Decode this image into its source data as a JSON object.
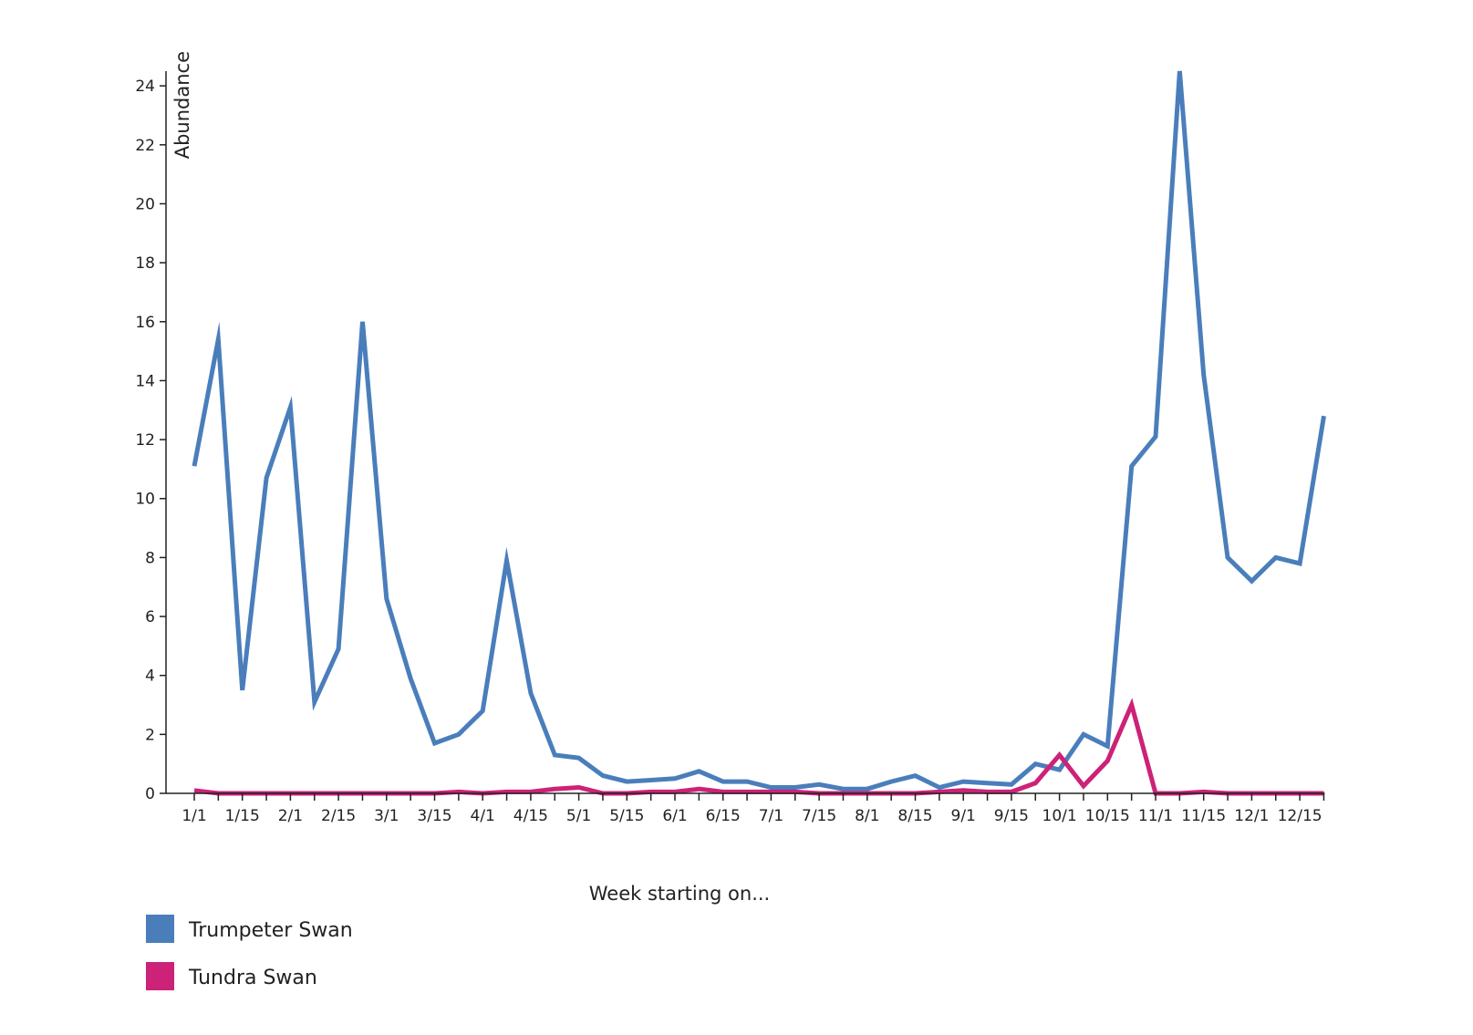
{
  "chart_data": {
    "type": "line",
    "xlabel": "Week starting on...",
    "ylabel": "Abundance",
    "ylim": [
      0,
      24.5
    ],
    "yticks": [
      0,
      2,
      4,
      6,
      8,
      10,
      12,
      14,
      16,
      18,
      20,
      22,
      24
    ],
    "x_tick_labels": [
      "1/1",
      "1/15",
      "2/1",
      "2/15",
      "3/1",
      "3/15",
      "4/1",
      "4/15",
      "5/1",
      "5/15",
      "6/1",
      "6/15",
      "7/1",
      "7/15",
      "8/1",
      "8/15",
      "9/1",
      "9/15",
      "10/1",
      "10/15",
      "11/1",
      "11/15",
      "12/1",
      "12/15"
    ],
    "grid": false,
    "legend_position": "bottom-left",
    "series": [
      {
        "name": "Trumpeter Swan",
        "color": "#4a7ebb",
        "values": [
          11.1,
          15.4,
          3.5,
          10.7,
          13.1,
          3.1,
          4.9,
          16.0,
          6.6,
          3.9,
          1.7,
          2.0,
          2.8,
          7.9,
          3.4,
          1.3,
          1.2,
          0.6,
          0.4,
          0.45,
          0.5,
          0.75,
          0.4,
          0.4,
          0.2,
          0.2,
          0.3,
          0.15,
          0.15,
          0.4,
          0.6,
          0.2,
          0.4,
          0.35,
          0.3,
          1.0,
          0.8,
          2.0,
          1.6,
          11.1,
          12.1,
          24.5,
          14.2,
          8.0,
          7.2,
          8.0,
          7.8,
          12.8
        ]
      },
      {
        "name": "Tundra Swan",
        "color": "#cc2277",
        "values": [
          0.1,
          0.0,
          0.0,
          0.0,
          0.0,
          0.0,
          0.0,
          0.0,
          0.0,
          0.0,
          0.0,
          0.05,
          0.0,
          0.05,
          0.05,
          0.15,
          0.2,
          0.0,
          0.0,
          0.05,
          0.05,
          0.15,
          0.05,
          0.05,
          0.05,
          0.05,
          0.0,
          0.0,
          0.0,
          0.0,
          0.0,
          0.05,
          0.1,
          0.05,
          0.05,
          0.35,
          1.3,
          0.25,
          1.1,
          3.0,
          0.0,
          0.0,
          0.05,
          0.0,
          0.0,
          0.0,
          0.0,
          0.0
        ]
      }
    ]
  }
}
